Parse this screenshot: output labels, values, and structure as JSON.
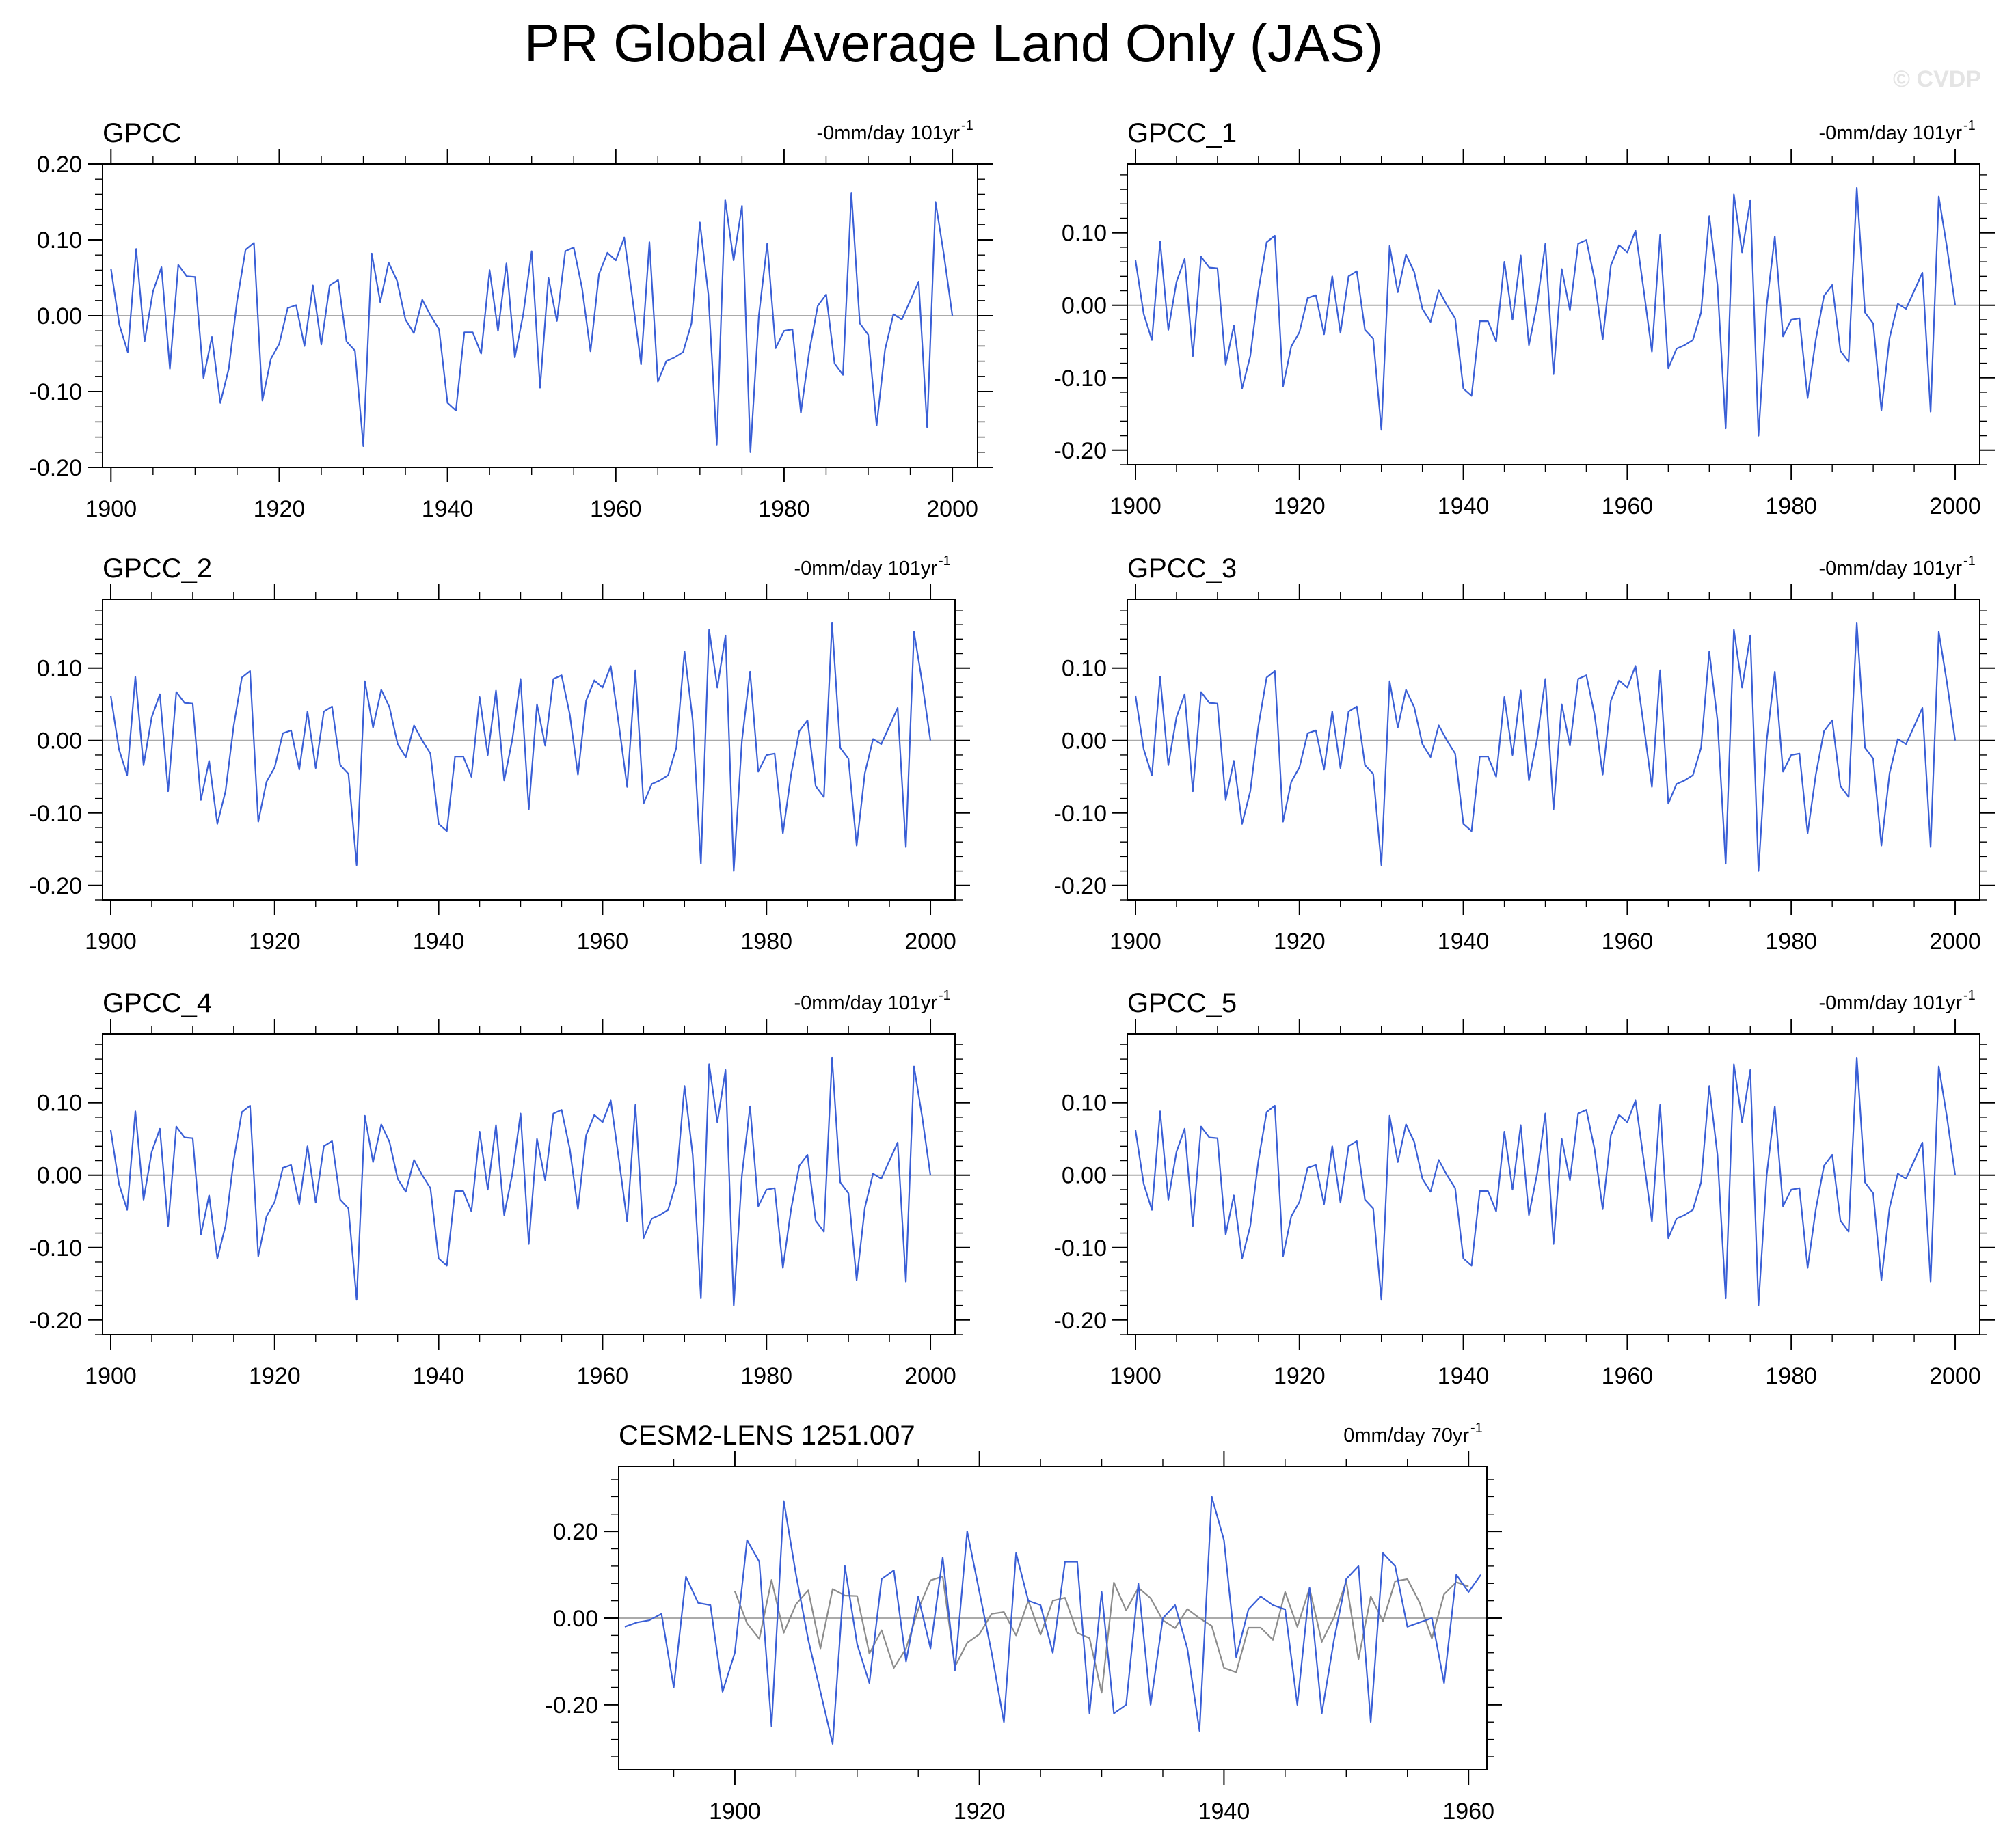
{
  "title": "PR Global Average Land Only (JAS)",
  "watermark": "© CVDP",
  "obs_values": [
    0.062,
    -0.012,
    -0.048,
    0.088,
    -0.034,
    0.032,
    0.064,
    -0.07,
    0.067,
    0.052,
    0.051,
    -0.082,
    -0.028,
    -0.115,
    -0.07,
    0.02,
    0.087,
    0.096,
    -0.112,
    -0.057,
    -0.037,
    0.01,
    0.014,
    -0.04,
    0.04,
    -0.038,
    0.04,
    0.047,
    -0.034,
    -0.046,
    -0.172,
    0.082,
    0.018,
    0.07,
    0.046,
    -0.005,
    -0.023,
    0.021,
    0.0,
    -0.018,
    -0.115,
    -0.125,
    -0.022,
    -0.022,
    -0.05,
    0.06,
    -0.02,
    0.069,
    -0.055,
    0.002,
    0.085,
    -0.095,
    0.05,
    -0.007,
    0.085,
    0.09,
    0.036,
    -0.047,
    0.055,
    0.083,
    0.073,
    0.103,
    0.021,
    -0.064,
    0.097,
    -0.087,
    -0.06,
    -0.055,
    -0.048,
    -0.01,
    0.123,
    0.028,
    -0.17,
    0.153,
    0.073,
    0.145,
    -0.18,
    0.0,
    0.095,
    -0.043,
    -0.02,
    -0.018,
    -0.128,
    -0.047,
    0.013,
    0.028,
    -0.063,
    -0.078,
    0.162,
    -0.01,
    -0.025,
    -0.145,
    -0.045,
    0.002,
    -0.005,
    0.02,
    0.045,
    -0.147,
    0.15,
    0.08,
    0.0
  ],
  "chart_data": [
    {
      "type": "line",
      "title": "GPCC",
      "trend_label": "-0mm/day 101yr",
      "trend_sup": "-1",
      "x_start": 1900,
      "x_end": 2000,
      "xlim": [
        1899,
        2003
      ],
      "ylim": [
        -0.2,
        0.2
      ],
      "x_ticks": [
        "1900",
        "1920",
        "1940",
        "1960",
        "1980",
        "2000"
      ],
      "y_ticks": [
        "0.20",
        "0.10",
        "0.00",
        "-0.10",
        "-0.20"
      ],
      "series": [
        {
          "values_ref": "obs_values",
          "color": "#3a5fd6"
        }
      ]
    },
    {
      "type": "line",
      "title": "GPCC_1",
      "trend_label": "-0mm/day 101yr",
      "trend_sup": "-1",
      "x_start": 1900,
      "x_end": 2000,
      "xlim": [
        1899,
        2003
      ],
      "ylim": [
        -0.22,
        0.195
      ],
      "x_ticks": [
        "1900",
        "1920",
        "1940",
        "1960",
        "1980",
        "2000"
      ],
      "y_ticks": [
        "0.10",
        "0.00",
        "-0.10",
        "-0.20"
      ],
      "series": [
        {
          "values_ref": "obs_values",
          "color": "#3a5fd6"
        }
      ]
    },
    {
      "type": "line",
      "title": "GPCC_2",
      "trend_label": "-0mm/day 101yr",
      "trend_sup": "-1",
      "x_start": 1900,
      "x_end": 2000,
      "xlim": [
        1899,
        2003
      ],
      "ylim": [
        -0.22,
        0.195
      ],
      "x_ticks": [
        "1900",
        "1920",
        "1940",
        "1960",
        "1980",
        "2000"
      ],
      "y_ticks": [
        "0.10",
        "0.00",
        "-0.10",
        "-0.20"
      ],
      "series": [
        {
          "values_ref": "obs_values",
          "color": "#3a5fd6"
        }
      ]
    },
    {
      "type": "line",
      "title": "GPCC_3",
      "trend_label": "-0mm/day 101yr",
      "trend_sup": "-1",
      "x_start": 1900,
      "x_end": 2000,
      "xlim": [
        1899,
        2003
      ],
      "ylim": [
        -0.22,
        0.195
      ],
      "x_ticks": [
        "1900",
        "1920",
        "1940",
        "1960",
        "1980",
        "2000"
      ],
      "y_ticks": [
        "0.10",
        "0.00",
        "-0.10",
        "-0.20"
      ],
      "series": [
        {
          "values_ref": "obs_values",
          "color": "#3a5fd6"
        }
      ]
    },
    {
      "type": "line",
      "title": "GPCC_4",
      "trend_label": "-0mm/day 101yr",
      "trend_sup": "-1",
      "x_start": 1900,
      "x_end": 2000,
      "xlim": [
        1899,
        2003
      ],
      "ylim": [
        -0.22,
        0.195
      ],
      "x_ticks": [
        "1900",
        "1920",
        "1940",
        "1960",
        "1980",
        "2000"
      ],
      "y_ticks": [
        "0.10",
        "0.00",
        "-0.10",
        "-0.20"
      ],
      "series": [
        {
          "values_ref": "obs_values",
          "color": "#3a5fd6"
        }
      ]
    },
    {
      "type": "line",
      "title": "GPCC_5",
      "trend_label": "-0mm/day 101yr",
      "trend_sup": "-1",
      "x_start": 1900,
      "x_end": 2000,
      "xlim": [
        1899,
        2003
      ],
      "ylim": [
        -0.22,
        0.195
      ],
      "x_ticks": [
        "1900",
        "1920",
        "1940",
        "1960",
        "1980",
        "2000"
      ],
      "y_ticks": [
        "0.10",
        "0.00",
        "-0.10",
        "-0.20"
      ],
      "series": [
        {
          "values_ref": "obs_values",
          "color": "#3a5fd6"
        }
      ]
    },
    {
      "type": "line",
      "title": "CESM2-LENS 1251.007",
      "trend_label": "0mm/day 70yr",
      "trend_sup": "-1",
      "xlim": [
        1890.5,
        1961.5
      ],
      "ylim": [
        -0.35,
        0.35
      ],
      "x_ticks": [
        "1900",
        "1920",
        "1940",
        "1960"
      ],
      "y_ticks": [
        "0.20",
        "0.00",
        "-0.20"
      ],
      "series": [
        {
          "x_start": 1900,
          "values_ref": "obs_values",
          "count": 61,
          "color": "#8c8c8c"
        },
        {
          "x": [
            1891,
            1892,
            1893,
            1894,
            1895,
            1896,
            1897,
            1898,
            1899,
            1900,
            1901,
            1902,
            1903,
            1904,
            1905,
            1906,
            1907,
            1908,
            1909,
            1910,
            1911,
            1912,
            1913,
            1914,
            1915,
            1916,
            1917,
            1918,
            1919,
            1920,
            1921,
            1922,
            1923,
            1924,
            1925,
            1926,
            1927,
            1928,
            1929,
            1930,
            1931,
            1932,
            1933,
            1934,
            1935,
            1936,
            1937,
            1938,
            1939,
            1940,
            1941,
            1942,
            1943,
            1944,
            1945,
            1946,
            1947,
            1948,
            1949,
            1950,
            1951,
            1952,
            1953,
            1954,
            1955,
            1956,
            1957,
            1958,
            1959,
            1960,
            1961
          ],
          "values": [
            -0.02,
            -0.01,
            -0.005,
            0.01,
            -0.16,
            0.095,
            0.035,
            0.03,
            -0.17,
            -0.08,
            0.18,
            0.13,
            -0.25,
            0.27,
            0.1,
            -0.05,
            -0.17,
            -0.29,
            0.12,
            -0.06,
            -0.15,
            0.09,
            0.11,
            -0.1,
            0.05,
            -0.07,
            0.14,
            -0.12,
            0.2,
            0.06,
            -0.08,
            -0.24,
            0.15,
            0.04,
            0.03,
            -0.08,
            0.13,
            0.13,
            -0.22,
            0.06,
            -0.22,
            -0.2,
            0.08,
            -0.2,
            0.0,
            0.03,
            -0.07,
            -0.26,
            0.28,
            0.18,
            -0.09,
            0.02,
            0.05,
            0.03,
            0.02,
            -0.2,
            0.07,
            -0.22,
            -0.05,
            0.09,
            0.12,
            -0.24,
            0.15,
            0.12,
            -0.02,
            -0.01,
            0.0,
            -0.15,
            0.1,
            0.06,
            0.1
          ],
          "color": "#3a5fd6"
        }
      ]
    }
  ]
}
